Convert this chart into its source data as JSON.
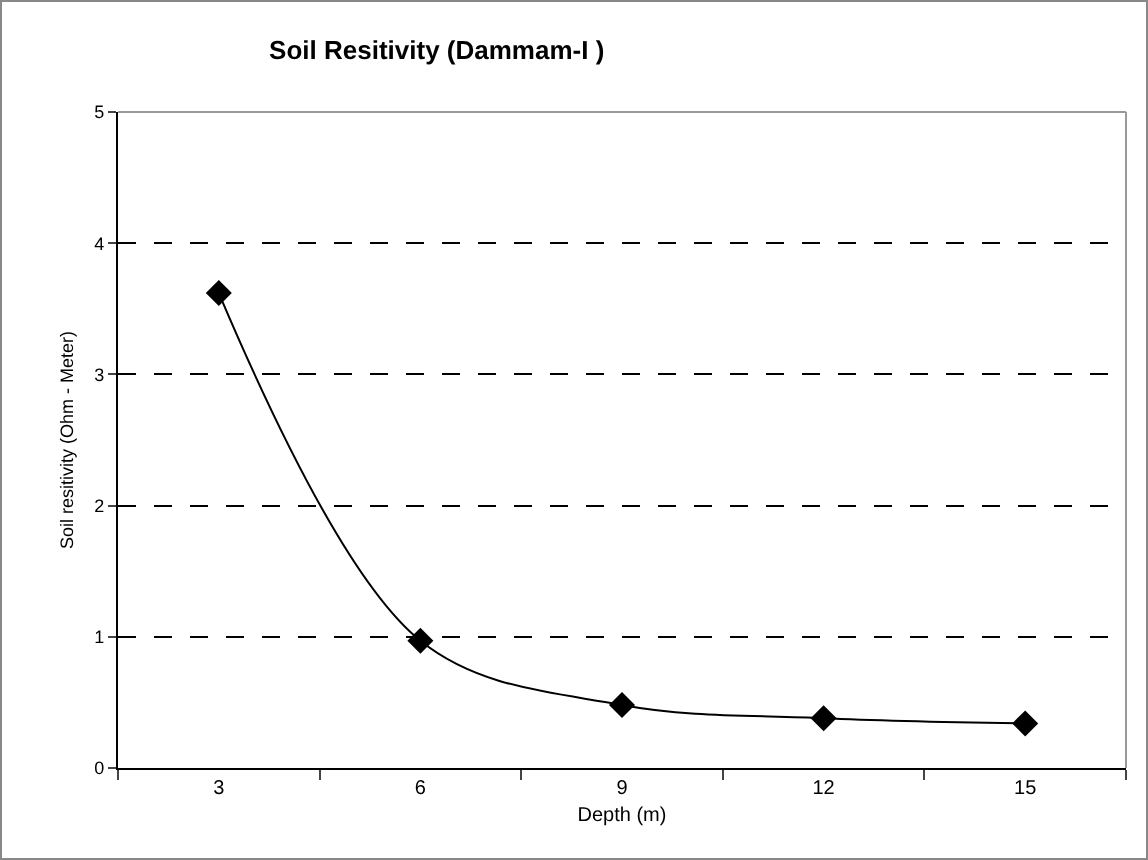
{
  "chart_data": {
    "type": "line",
    "title": "Soil Resitivity (Dammam-I )",
    "xlabel": "Depth (m)",
    "ylabel": "Soil resitivity (Ohm - Meter)",
    "categories": [
      "3",
      "6",
      "9",
      "12",
      "15"
    ],
    "series": [
      {
        "color": "#000000",
        "values": [
          3.62,
          0.97,
          0.48,
          0.38,
          0.34
        ]
      }
    ],
    "ylim": [
      0,
      5
    ],
    "yticks": [
      0,
      1,
      2,
      3,
      4,
      5
    ],
    "grid": "y",
    "marker": "diamond",
    "line_style": "solid"
  }
}
